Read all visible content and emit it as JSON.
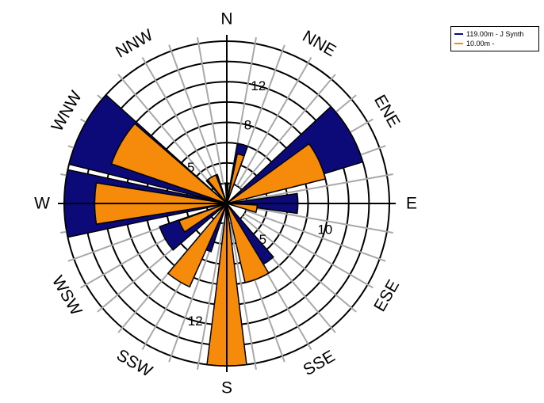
{
  "chart_data": {
    "type": "windrose",
    "title": "",
    "directions": [
      "N",
      "NNE",
      "ENE",
      "E",
      "ESE",
      "SSE",
      "S",
      "SSW",
      "WSW",
      "W",
      "WNW",
      "NNW"
    ],
    "sector_width_deg": 30,
    "radial_max": 16,
    "rings": [
      2,
      4,
      6,
      8,
      10,
      12,
      14,
      16
    ],
    "ring_labels": [
      {
        "text": "5",
        "value": 5,
        "bearing_deg": 315
      },
      {
        "text": "8",
        "value": 8,
        "bearing_deg": 15
      },
      {
        "text": "12",
        "value": 12,
        "bearing_deg": 15
      },
      {
        "text": "5",
        "value": 5,
        "bearing_deg": 135
      },
      {
        "text": "10",
        "value": 10,
        "bearing_deg": 105
      },
      {
        "text": "12",
        "value": 12,
        "bearing_deg": 195
      }
    ],
    "legend_placement": "top-right",
    "series": [
      {
        "name": "119.00m - J Synth",
        "color": "#0b0a78",
        "sectors": [
          {
            "center": 0,
            "width": 8,
            "value": 2
          },
          {
            "center": 15,
            "width": 10,
            "value": 6
          },
          {
            "center": 60,
            "width": 26,
            "value": 14
          },
          {
            "center": 90,
            "width": 16,
            "value": 7
          },
          {
            "center": 150,
            "width": 22,
            "value": 7
          },
          {
            "center": 180,
            "width": 12,
            "value": 7
          },
          {
            "center": 207,
            "width": 18,
            "value": 5
          },
          {
            "center": 240,
            "width": 22,
            "value": 7
          },
          {
            "center": 270,
            "width": 24,
            "value": 16
          },
          {
            "center": 298,
            "width": 28,
            "value": 16
          },
          {
            "center": 330,
            "width": 24,
            "value": 3
          }
        ]
      },
      {
        "name": "10.00m -",
        "color": "#f58a0b",
        "sectors": [
          {
            "center": 16,
            "width": 8,
            "value": 5
          },
          {
            "center": 65,
            "width": 22,
            "value": 10
          },
          {
            "center": 100,
            "width": 14,
            "value": 3
          },
          {
            "center": 158,
            "width": 18,
            "value": 8
          },
          {
            "center": 180,
            "width": 14,
            "value": 16
          },
          {
            "center": 212,
            "width": 16,
            "value": 9
          },
          {
            "center": 243,
            "width": 14,
            "value": 5
          },
          {
            "center": 270,
            "width": 18,
            "value": 13
          },
          {
            "center": 300,
            "width": 22,
            "value": 12
          },
          {
            "center": 330,
            "width": 18,
            "value": 3
          }
        ]
      }
    ]
  }
}
